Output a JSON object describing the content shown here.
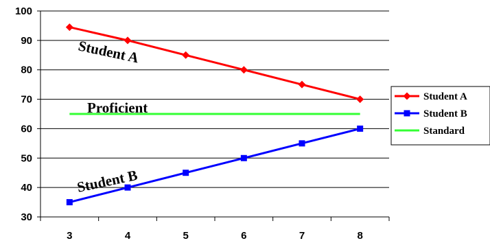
{
  "chart_data": {
    "type": "line",
    "title": "",
    "xlabel": "",
    "ylabel": "",
    "x": [
      3,
      4,
      5,
      6,
      7,
      8
    ],
    "ylim": [
      30,
      100
    ],
    "y_ticks": [
      30,
      40,
      50,
      60,
      70,
      80,
      90,
      100
    ],
    "grid": "horizontal",
    "legend_position": "right",
    "series": [
      {
        "name": "Student A",
        "values": [
          94.5,
          90,
          85,
          80,
          75,
          70
        ],
        "color": "#ff0000",
        "marker": "diamond"
      },
      {
        "name": "Student B",
        "values": [
          35,
          40,
          45,
          50,
          55,
          60
        ],
        "color": "#0000ff",
        "marker": "square"
      },
      {
        "name": "Standard",
        "values": [
          65,
          65,
          65,
          65,
          65,
          65
        ],
        "color": "#33ff33",
        "marker": "none"
      }
    ],
    "annotations": {
      "student_a": "Student A",
      "student_b": "Student B",
      "proficient": "Proficient"
    }
  }
}
